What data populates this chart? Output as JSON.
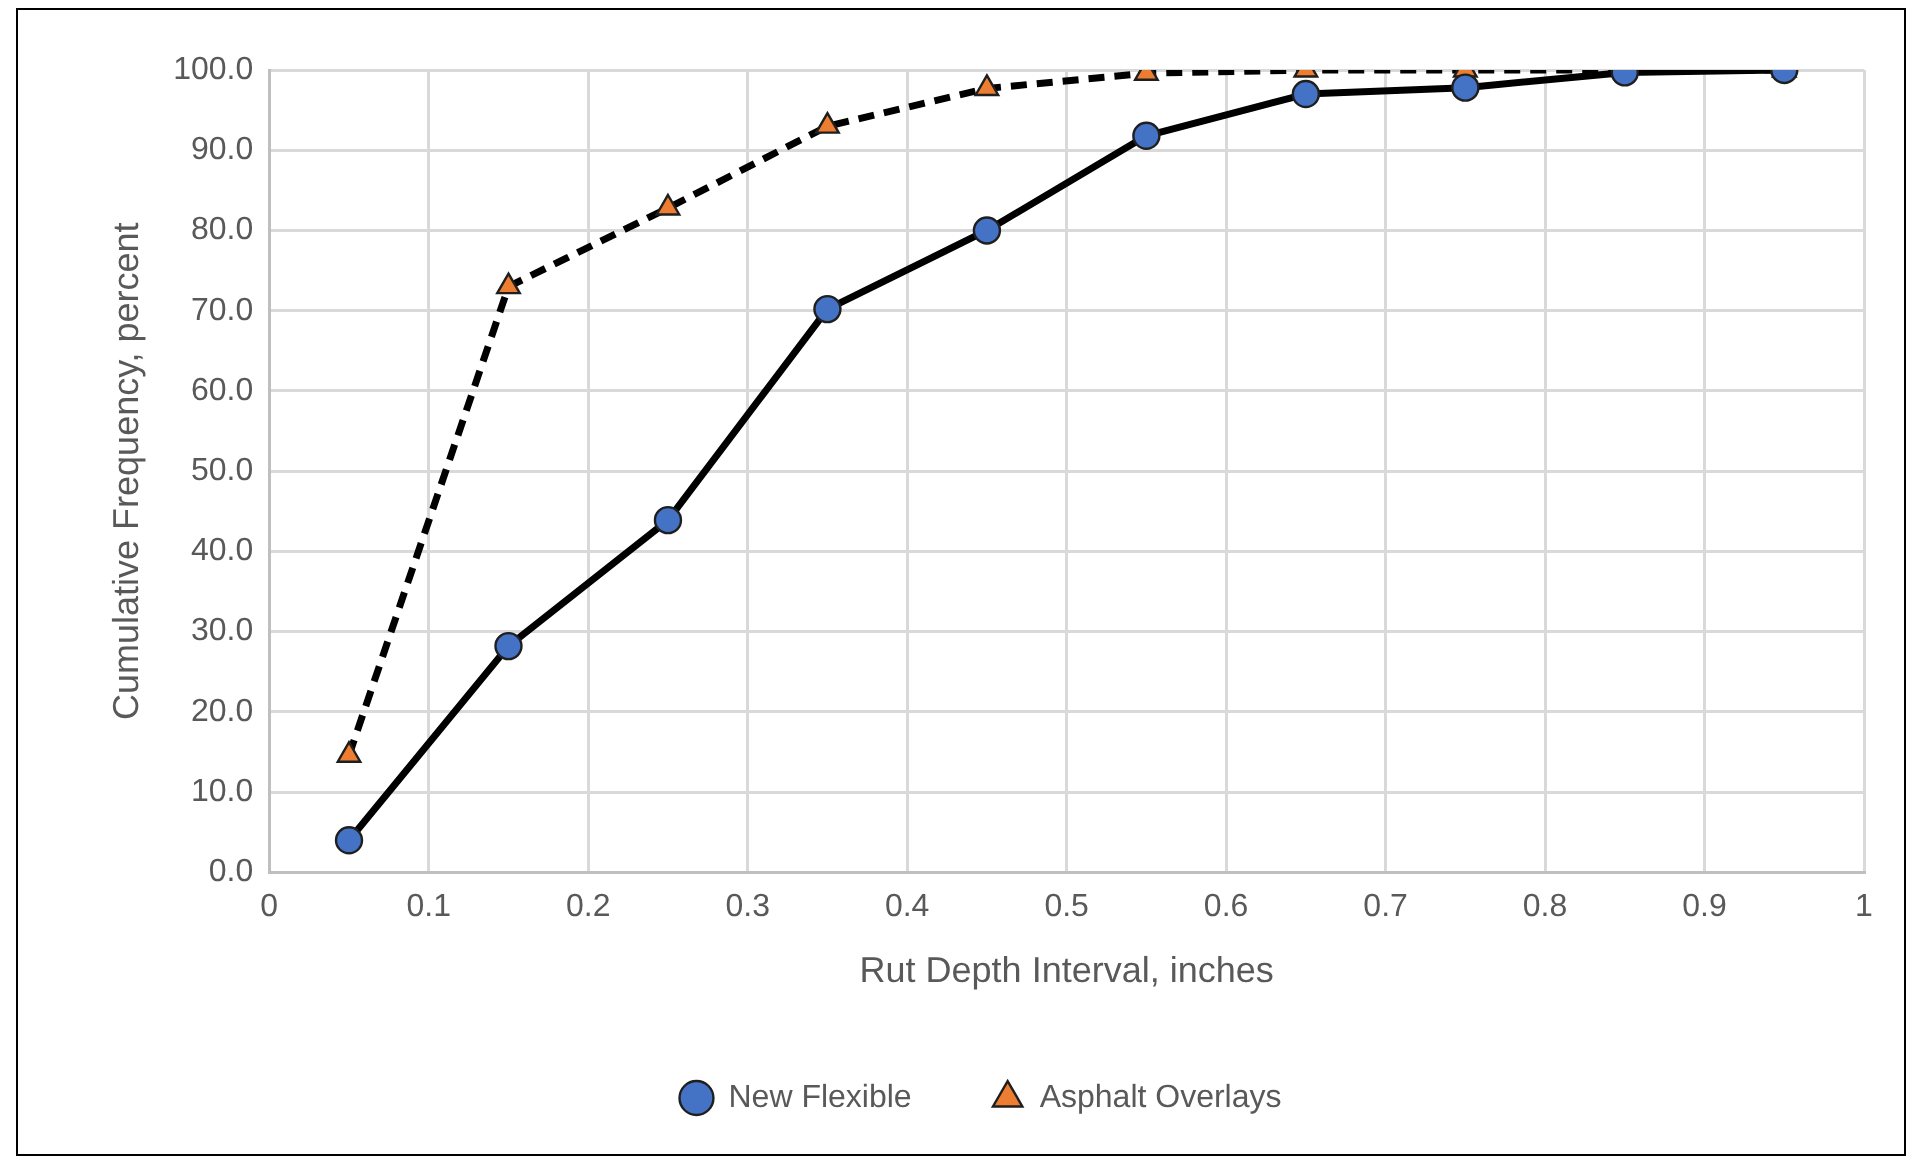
{
  "chart_data": {
    "type": "line",
    "xlabel": "Rut Depth Interval, inches",
    "ylabel": "Cumulative Frequency, percent",
    "x": [
      0.05,
      0.15,
      0.25,
      0.35,
      0.45,
      0.55,
      0.65,
      0.75,
      0.85,
      0.95
    ],
    "series": [
      {
        "name": "New Flexible",
        "color": "#4472c4",
        "marker": "circle",
        "line_style": "solid",
        "values": [
          4,
          28.2,
          43.9,
          70.2,
          80,
          91.8,
          97,
          97.8,
          99.7,
          100
        ]
      },
      {
        "name": "Asphalt Overlays",
        "color": "#ed7d31",
        "marker": "triangle",
        "line_style": "dashed",
        "values": [
          14.6,
          73,
          82.8,
          93,
          97.7,
          99.6,
          100,
          100,
          100,
          100
        ]
      }
    ],
    "xlim": [
      0,
      1
    ],
    "xticks": [
      0,
      0.1,
      0.2,
      0.3,
      0.4,
      0.5,
      0.6,
      0.7,
      0.8,
      0.9,
      1
    ],
    "ylim": [
      0,
      100
    ],
    "yticks": [
      {
        "value": 0,
        "label": "0.0"
      },
      {
        "value": 10,
        "label": "10.0"
      },
      {
        "value": 20,
        "label": "20.0"
      },
      {
        "value": 30,
        "label": "30.0"
      },
      {
        "value": 40,
        "label": "40.0"
      },
      {
        "value": 50,
        "label": "50.0"
      },
      {
        "value": 60,
        "label": "60.0"
      },
      {
        "value": 70,
        "label": "70.0"
      },
      {
        "value": 80,
        "label": "80.0"
      },
      {
        "value": 90,
        "label": "90.0"
      },
      {
        "value": 100,
        "label": "100.0"
      }
    ],
    "grid": true,
    "legend": "bottom"
  }
}
